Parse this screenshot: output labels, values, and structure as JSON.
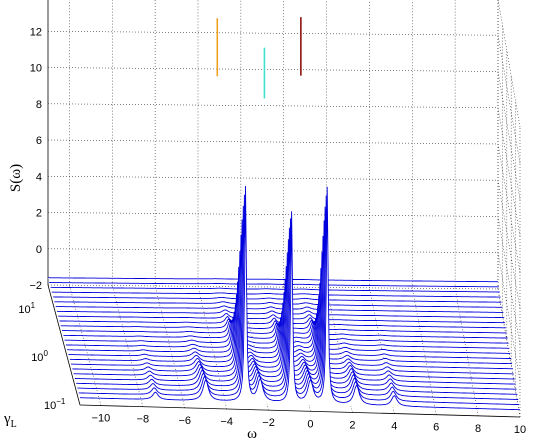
{
  "chart_data": {
    "type": "surface",
    "title": "",
    "zlabel": "S(ω)",
    "xlabel": "ω",
    "ylabel_main": "γ",
    "ylabel_sub": "L",
    "xlim": [
      -11,
      10
    ],
    "zlim": [
      -2,
      14
    ],
    "ylim_log10": [
      -1,
      1.5
    ],
    "y_scale": "log",
    "x_ticks": [
      "−10",
      "−8",
      "−6",
      "−4",
      "−2",
      "0",
      "2",
      "4",
      "6",
      "8",
      "10"
    ],
    "z_ticks": [
      "−2",
      "0",
      "2",
      "4",
      "6",
      "8",
      "10",
      "12",
      "14"
    ],
    "y_ticks": [
      {
        "base": "10",
        "exp": "−1"
      },
      {
        "base": "10",
        "exp": "0"
      },
      {
        "base": "10",
        "exp": "1"
      }
    ],
    "grid": true,
    "peaks": [
      {
        "omega": -3.1,
        "height": 12.8,
        "color": "#f0a020"
      },
      {
        "omega": -0.9,
        "height": 11.2,
        "color": "#40e0d0"
      },
      {
        "omega": 0.8,
        "height": 12.9,
        "color": "#8b1010"
      }
    ],
    "side_peaks": [
      {
        "omega": -7.4,
        "height": 0.5
      },
      {
        "omega": -5.0,
        "height": 1.4
      },
      {
        "omega": -2.4,
        "height": 1.5
      },
      {
        "omega": 0.0,
        "height": 1.5
      },
      {
        "omega": 2.2,
        "height": 1.3
      },
      {
        "omega": 4.0,
        "height": 0.7
      }
    ],
    "mesh_color": "#0000dd"
  }
}
